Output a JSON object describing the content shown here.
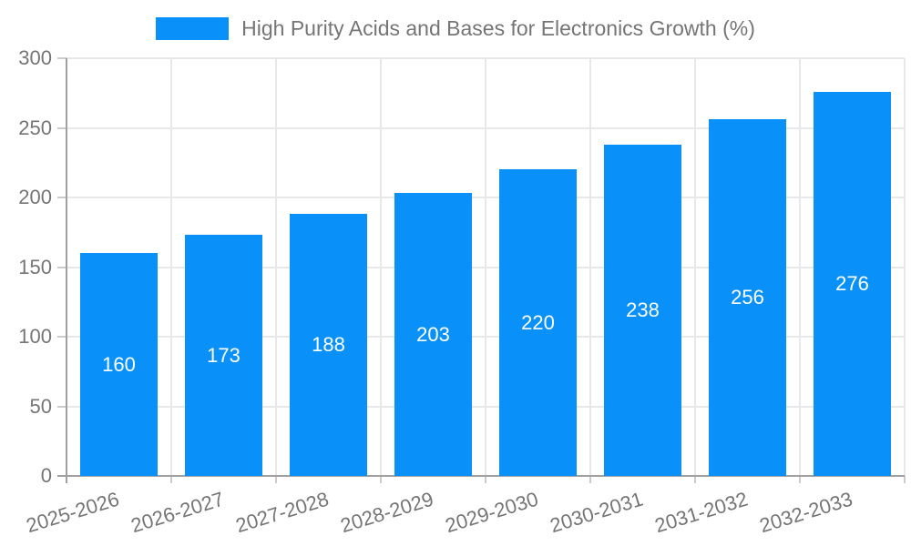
{
  "chart_data": {
    "type": "bar",
    "title": "High Purity Acids and Bases for Electronics Growth (%)",
    "categories": [
      "2025-2026",
      "2026-2027",
      "2027-2028",
      "2028-2029",
      "2029-2030",
      "2030-2031",
      "2031-2032",
      "2032-2033"
    ],
    "series": [
      {
        "name": "High Purity Acids and Bases for Electronics Growth (%)",
        "values": [
          160,
          173,
          188,
          203,
          220,
          238,
          256,
          276
        ]
      }
    ],
    "xlabel": "",
    "ylabel": "",
    "ylim": [
      0,
      300
    ],
    "yticks": [
      0,
      50,
      100,
      150,
      200,
      250,
      300
    ],
    "grid": true,
    "legend_position": "top",
    "value_labels": "inside-center",
    "x_label_rotation_deg": -17,
    "colors": {
      "bar": "#0991f9",
      "value_label": "#ffffff",
      "axis_text": "#757575",
      "title_text": "#757575",
      "gridline": "#e8e8e8",
      "axis_line": "#a0a0a0",
      "tick": "#cccccc"
    }
  }
}
